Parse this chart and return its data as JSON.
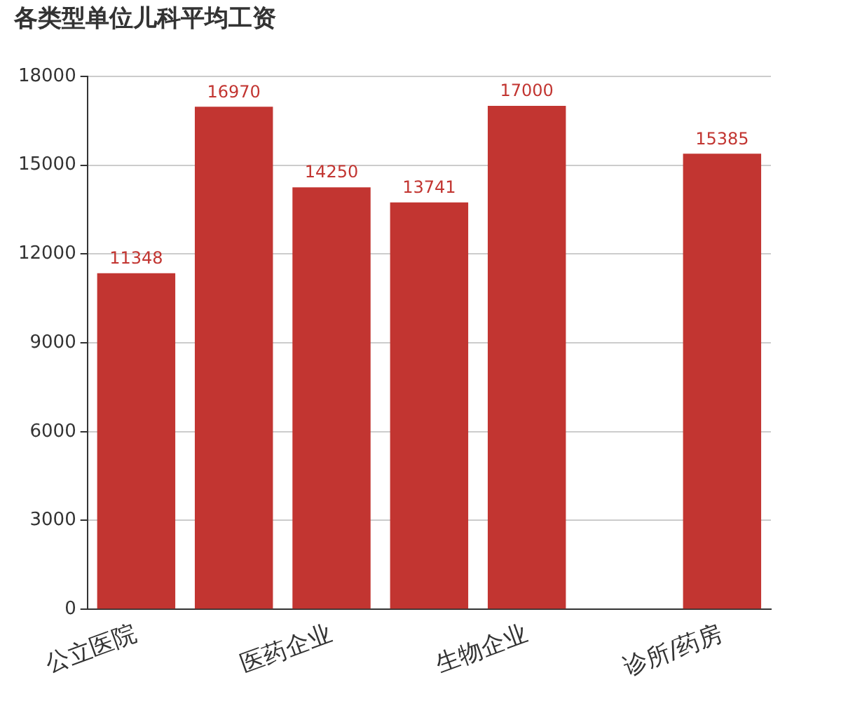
{
  "chart_data": {
    "type": "bar",
    "title": "各类型单位儿科平均工资",
    "categories": [
      "公立医院",
      null,
      "医药企业",
      null,
      "生物企业",
      null,
      "诊所/药房"
    ],
    "values": [
      11348,
      16970,
      14250,
      13741,
      17000,
      null,
      15385
    ],
    "color": "#c23531",
    "ylim": [
      0,
      18000
    ],
    "yticks": [
      0,
      3000,
      6000,
      9000,
      12000,
      15000,
      18000
    ],
    "grid": "y",
    "legend": false,
    "data_labels": true
  }
}
